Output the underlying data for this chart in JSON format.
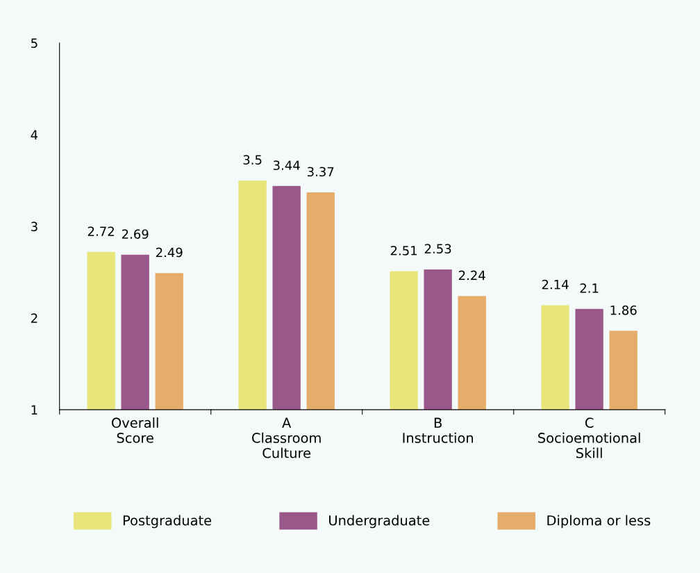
{
  "chart_data": {
    "type": "bar",
    "categories": [
      "Overall\nScore",
      "A\nClassroom\nCulture",
      "B\nInstruction",
      "C\nSocioemotional\nSkill"
    ],
    "series": [
      {
        "name": "Postgraduate",
        "color": "#e8e57a",
        "values": [
          2.72,
          3.5,
          2.51,
          2.14
        ]
      },
      {
        "name": "Undergraduate",
        "color": "#9a5789",
        "values": [
          2.69,
          3.44,
          2.53,
          2.1
        ]
      },
      {
        "name": "Diploma or less",
        "color": "#e5ac6a",
        "values": [
          2.49,
          3.37,
          2.24,
          1.86
        ]
      }
    ],
    "ylim": [
      1,
      5
    ],
    "yticks": [
      1,
      2,
      3,
      4,
      5
    ],
    "grid": false,
    "legend": "bottom",
    "data_labels": true
  }
}
